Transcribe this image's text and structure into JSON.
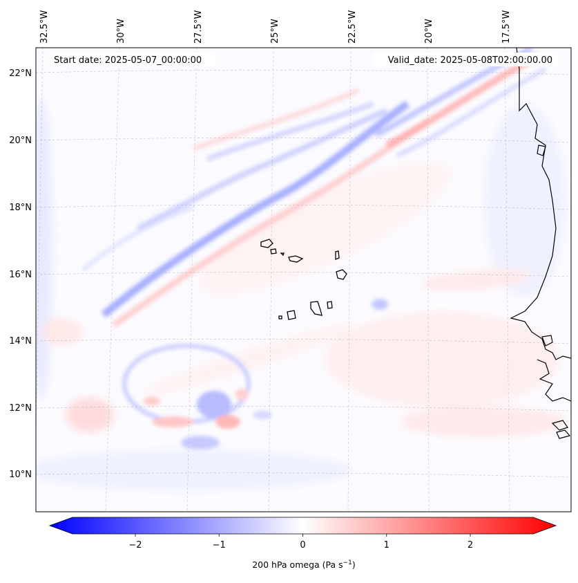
{
  "map": {
    "start_date": "Start date: 2025-05-07_00:00:00",
    "valid_date": "Valid_date: 2025-05-08T02:00:00.00",
    "lon_labels": [
      "32.5°W",
      "30°W",
      "27.5°W",
      "25°W",
      "22.5°W",
      "20°W",
      "17.5°W"
    ],
    "lat_labels": [
      "22°N",
      "20°N",
      "18°N",
      "16°N",
      "14°N",
      "12°N",
      "10°N"
    ],
    "colors": {
      "negative": "#0000ff",
      "zero": "#ffffff",
      "positive": "#ff0000",
      "coastline": "#000000",
      "gridline": "#b0b0b0"
    }
  },
  "colorbar": {
    "label": "200 hPa omega (Pa s",
    "label_exponent": "−1",
    "label_close": ")",
    "ticks": [
      "−2",
      "−1",
      "0",
      "1",
      "2"
    ],
    "vmin": -2.75,
    "vmax": 2.75,
    "tick_values": [
      -2,
      -1,
      0,
      1,
      2
    ]
  }
}
